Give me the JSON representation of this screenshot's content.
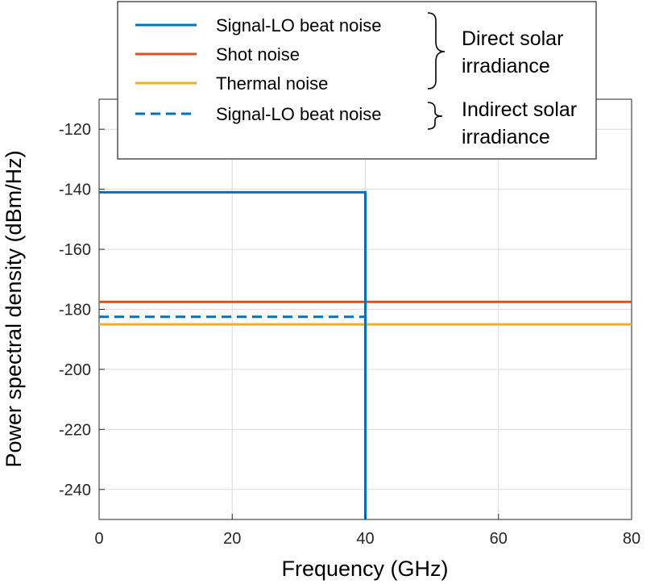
{
  "chart_data": {
    "type": "line",
    "xlabel": "Frequency (GHz)",
    "ylabel": "Power spectral density (dBm/Hz)",
    "xlim": [
      0,
      80
    ],
    "ylim": [
      -250,
      -110
    ],
    "xticks": [
      0,
      20,
      40,
      60,
      80
    ],
    "yticks": [
      -120,
      -140,
      -160,
      -180,
      -200,
      -220,
      -240
    ],
    "grid": true,
    "legend_position": "top",
    "series": [
      {
        "name": "Signal-LO beat noise",
        "color": "#0072BD",
        "style": "solid",
        "x": [
          0,
          40,
          40
        ],
        "y": [
          -141,
          -141,
          -250
        ]
      },
      {
        "name": "Shot noise",
        "color": "#D95319",
        "style": "solid",
        "x": [
          0,
          80
        ],
        "y": [
          -177.5,
          -177.5
        ]
      },
      {
        "name": "Thermal noise",
        "color": "#EDB120",
        "style": "solid",
        "x": [
          0,
          80
        ],
        "y": [
          -185,
          -185
        ]
      },
      {
        "name": "Signal-LO beat noise",
        "color": "#0072BD",
        "style": "dashed",
        "x": [
          0,
          40
        ],
        "y": [
          -182.5,
          -182.5
        ]
      }
    ],
    "legend_groups": [
      {
        "label_lines": [
          "Direct solar",
          "irradiance"
        ],
        "series_indices": [
          0,
          1,
          2
        ]
      },
      {
        "label_lines": [
          "Indirect solar",
          "irradiance"
        ],
        "series_indices": [
          3
        ]
      }
    ]
  }
}
